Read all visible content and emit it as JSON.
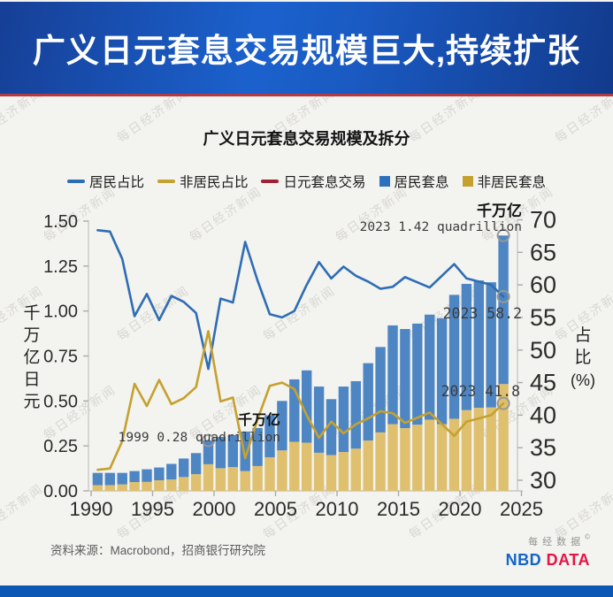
{
  "banner": {
    "title": "广义日元套息交易规模巨大,持续扩张"
  },
  "chart": {
    "title": "广义日元套息交易规模及拆分",
    "left_axis": {
      "title": "千万亿日元",
      "min": 0,
      "max": 1.5,
      "step": 0.25
    },
    "right_axis": {
      "title": "占比",
      "title_unit": "(%)",
      "min": 30,
      "max": 70,
      "step": 5
    },
    "x_axis": {
      "ticks": [
        1990,
        1995,
        2000,
        2005,
        2010,
        2015,
        2020,
        2025
      ]
    },
    "legend": [
      {
        "label": "居民占比",
        "marker": "dash",
        "color": "#2e6db4"
      },
      {
        "label": "非居民占比",
        "marker": "dash",
        "color": "#c5a12f"
      },
      {
        "label": "日元套息交易",
        "marker": "dash",
        "color": "#9e2236"
      },
      {
        "label": "居民套息",
        "marker": "square",
        "color": "#2d71bd"
      },
      {
        "label": "非居民套息",
        "marker": "square",
        "color": "#c4a02e"
      }
    ]
  },
  "chart_data": {
    "type": "bar",
    "title": "广义日元套息交易规模及拆分",
    "xlabel": "",
    "ylabel_left": "千万亿日元",
    "ylabel_right": "占比(%)",
    "ylim_left": [
      0,
      1.5
    ],
    "ylim_right": [
      30,
      70
    ],
    "grid": false,
    "legend_position": "top",
    "x": [
      1990,
      1991,
      1992,
      1993,
      1994,
      1995,
      1996,
      1997,
      1998,
      1999,
      2000,
      2001,
      2002,
      2003,
      2004,
      2005,
      2006,
      2007,
      2008,
      2009,
      2010,
      2011,
      2012,
      2013,
      2014,
      2015,
      2016,
      2017,
      2018,
      2019,
      2020,
      2021,
      2022,
      2023
    ],
    "series": [
      {
        "name": "非居民套息",
        "kind": "bar-stack-bottom",
        "axis": "left",
        "unit": "quadrillion_yen",
        "values": [
          0.032,
          0.032,
          0.036,
          0.049,
          0.05,
          0.059,
          0.063,
          0.077,
          0.093,
          0.148,
          0.126,
          0.132,
          0.11,
          0.138,
          0.187,
          0.225,
          0.273,
          0.268,
          0.212,
          0.199,
          0.216,
          0.235,
          0.28,
          0.325,
          0.371,
          0.349,
          0.368,
          0.396,
          0.371,
          0.401,
          0.449,
          0.462,
          0.464,
          0.594
        ]
      },
      {
        "name": "居民套息",
        "kind": "bar-stack-top",
        "axis": "left",
        "unit": "quadrillion_yen",
        "values": [
          0.068,
          0.068,
          0.064,
          0.061,
          0.07,
          0.071,
          0.087,
          0.103,
          0.117,
          0.132,
          0.174,
          0.178,
          0.22,
          0.212,
          0.233,
          0.275,
          0.347,
          0.402,
          0.368,
          0.311,
          0.364,
          0.375,
          0.43,
          0.475,
          0.549,
          0.551,
          0.562,
          0.584,
          0.589,
          0.689,
          0.702,
          0.708,
          0.696,
          0.826
        ]
      },
      {
        "name": "日元套息交易",
        "kind": "line",
        "axis": "left",
        "unit": "quadrillion_yen",
        "values": [
          0.1,
          0.1,
          0.1,
          0.11,
          0.12,
          0.13,
          0.15,
          0.18,
          0.21,
          0.28,
          0.3,
          0.31,
          0.33,
          0.35,
          0.42,
          0.5,
          0.62,
          0.67,
          0.58,
          0.51,
          0.58,
          0.61,
          0.71,
          0.8,
          0.92,
          0.9,
          0.93,
          0.98,
          0.96,
          1.09,
          1.15,
          1.17,
          1.16,
          1.42
        ]
      },
      {
        "name": "居民占比",
        "kind": "line",
        "axis": "right",
        "unit": "percent",
        "values": [
          68.4,
          68.2,
          64.0,
          55.2,
          58.6,
          54.6,
          58.3,
          57.4,
          55.7,
          47.1,
          57.9,
          57.3,
          66.6,
          60.7,
          55.5,
          55.0,
          56.0,
          60.0,
          63.5,
          61.0,
          62.8,
          61.4,
          60.5,
          59.4,
          59.7,
          61.2,
          60.4,
          59.6,
          61.4,
          63.2,
          61.0,
          60.5,
          60.0,
          58.2
        ]
      },
      {
        "name": "非居民占比",
        "kind": "line",
        "axis": "right",
        "unit": "percent",
        "values": [
          31.6,
          31.8,
          36.0,
          44.8,
          41.4,
          45.4,
          41.7,
          42.6,
          44.3,
          52.9,
          42.1,
          42.7,
          33.4,
          39.3,
          44.5,
          45.0,
          44.0,
          40.0,
          36.5,
          39.0,
          37.2,
          38.6,
          39.5,
          40.6,
          40.3,
          38.8,
          39.6,
          40.4,
          38.6,
          36.8,
          39.0,
          39.5,
          40.0,
          41.8
        ]
      }
    ],
    "annotations": [
      {
        "id": "trough",
        "unit_label": "千万亿",
        "text": "1999 0.28 quadrillion",
        "year": 1999,
        "value": 0.28
      },
      {
        "id": "peak",
        "unit_label": "千万亿",
        "text": "2023 1.42 quadrillion",
        "year": 2023,
        "value": 1.42
      },
      {
        "id": "resident-end",
        "text": "2023 58.2",
        "year": 2023,
        "value": 58.2
      },
      {
        "id": "nonresident-end",
        "text": "2023 41.8",
        "year": 2023,
        "value": 41.8
      }
    ]
  },
  "colors": {
    "resident_line": "#2e6db4",
    "nonresident_line": "#c5a12f",
    "total_line": "#9e2236",
    "resident_bar": "#4e86c4",
    "nonresident_bar": "#dec06f",
    "axis": "#c8c8c8",
    "tick_text": "#2b2b2b",
    "annotation_text": "#3c3c3c",
    "marker_circle": "#979797",
    "banner_red": "#b23a40",
    "bottom_bar": "#0c56b4",
    "brand_blue": "#1464c8",
    "brand_red": "#e51442"
  },
  "footer": {
    "source": "资料来源：Macrobond，招商银行研究院",
    "brand_cn": "每经数据",
    "brand_mark": "©",
    "brand_blue": "NBD",
    "brand_red": "DATA"
  },
  "watermark": {
    "text": "每日经济新闻"
  }
}
